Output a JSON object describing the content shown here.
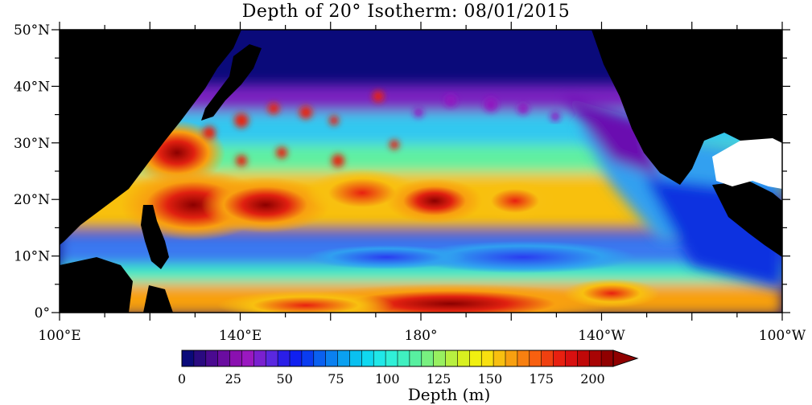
{
  "title": "Depth of 20° Isotherm: 08/01/2015",
  "map": {
    "region": "Tropical / North Pacific",
    "lon_range": [
      100,
      260
    ],
    "lat_range": [
      0,
      50
    ],
    "lat_ticks": [
      {
        "value": 50,
        "label": "50°N"
      },
      {
        "value": 40,
        "label": "40°N"
      },
      {
        "value": 30,
        "label": "30°N"
      },
      {
        "value": 20,
        "label": "20°N"
      },
      {
        "value": 10,
        "label": "10°N"
      },
      {
        "value": 0,
        "label": "0°"
      }
    ],
    "lon_ticks": [
      {
        "value": 100,
        "label": "100°E"
      },
      {
        "value": 140,
        "label": "140°E"
      },
      {
        "value": 180,
        "label": "180°"
      },
      {
        "value": 220,
        "label": "140°W"
      },
      {
        "value": 260,
        "label": "100°W"
      }
    ],
    "land_color": "#000000",
    "no_data_color": "#ffffff"
  },
  "colorbar": {
    "title": "Depth (m)",
    "range": [
      0,
      210
    ],
    "step": 5,
    "over_arrow": true,
    "tick_labels": [
      "0",
      "25",
      "50",
      "75",
      "100",
      "125",
      "150",
      "175",
      "200"
    ],
    "colors": [
      "#0a0a7a",
      "#2a0a80",
      "#4a0a90",
      "#6a0ca0",
      "#8a10b0",
      "#9a18c0",
      "#7a20d0",
      "#5a28e0",
      "#2a1ee8",
      "#1020f0",
      "#0a3cf0",
      "#0a60f0",
      "#0a80f0",
      "#0aa0f0",
      "#0ac0f0",
      "#10d8f0",
      "#20e8e8",
      "#30f0d8",
      "#40f0c0",
      "#58f0a0",
      "#78f080",
      "#98f060",
      "#b8f040",
      "#d8f020",
      "#f0f010",
      "#f8e010",
      "#f8c010",
      "#f8a010",
      "#f88010",
      "#f86010",
      "#f04010",
      "#e82010",
      "#d81010",
      "#c00808",
      "#a80404",
      "#900000"
    ]
  }
}
